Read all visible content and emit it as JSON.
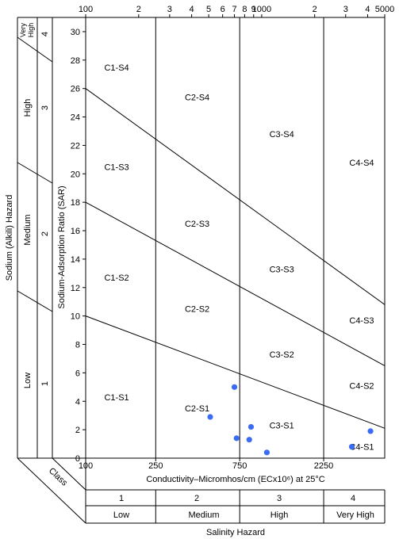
{
  "chart_data": {
    "type": "scatter",
    "title": "",
    "xlabel": "Conductivity–Micromhos/cm (ECx10⁶) at 25°C",
    "ylabel": "Sodium-Adsorption Ratio (SAR)",
    "x_scale": "log",
    "xlim": [
      100,
      5000
    ],
    "ylim": [
      0,
      31
    ],
    "top_ticks": [
      {
        "label": "100",
        "x": 100
      },
      {
        "label": "2",
        "x": 200
      },
      {
        "label": "3",
        "x": 300
      },
      {
        "label": "4",
        "x": 400
      },
      {
        "label": "5",
        "x": 500
      },
      {
        "label": "6",
        "x": 600
      },
      {
        "label": "7",
        "x": 700
      },
      {
        "label": "8",
        "x": 800
      },
      {
        "label": "9",
        "x": 900
      },
      {
        "label": "1000",
        "x": 1000
      },
      {
        "label": "2",
        "x": 2000
      },
      {
        "label": "3",
        "x": 3000
      },
      {
        "label": "4",
        "x": 4000
      },
      {
        "label": "5000",
        "x": 5000
      }
    ],
    "bottom_ticks": [
      {
        "label": "100",
        "x": 100
      },
      {
        "label": "250",
        "x": 250
      },
      {
        "label": "750",
        "x": 750
      },
      {
        "label": "2250",
        "x": 2250
      }
    ],
    "y_ticks": [
      0,
      2,
      4,
      6,
      8,
      10,
      12,
      14,
      16,
      18,
      20,
      22,
      24,
      26,
      28,
      30
    ],
    "class_boundaries_x": [
      250,
      750,
      2250
    ],
    "sar_lines": [
      {
        "x": [
          100,
          5000
        ],
        "y": [
          26,
          10.8
        ]
      },
      {
        "x": [
          100,
          5000
        ],
        "y": [
          18,
          6.5
        ]
      },
      {
        "x": [
          100,
          5000
        ],
        "y": [
          10,
          2.1
        ]
      }
    ],
    "region_labels": [
      {
        "text": "C1-S4",
        "x": 150,
        "y": 27.5
      },
      {
        "text": "C1-S3",
        "x": 150,
        "y": 20.5
      },
      {
        "text": "C1-S2",
        "x": 150,
        "y": 12.7
      },
      {
        "text": "C1-S1",
        "x": 150,
        "y": 4.3
      },
      {
        "text": "C2-S4",
        "x": 430,
        "y": 25.4
      },
      {
        "text": "C2-S3",
        "x": 430,
        "y": 16.5
      },
      {
        "text": "C2-S2",
        "x": 430,
        "y": 10.5
      },
      {
        "text": "C2-S1",
        "x": 430,
        "y": 3.5
      },
      {
        "text": "C3-S4",
        "x": 1300,
        "y": 22.8
      },
      {
        "text": "C3-S3",
        "x": 1300,
        "y": 13.3
      },
      {
        "text": "C3-S2",
        "x": 1300,
        "y": 7.3
      },
      {
        "text": "C3-S1",
        "x": 1300,
        "y": 2.3
      },
      {
        "text": "C4-S4",
        "x": 3700,
        "y": 20.8
      },
      {
        "text": "C4-S3",
        "x": 3700,
        "y": 9.7
      },
      {
        "text": "C4-S2",
        "x": 3700,
        "y": 5.1
      },
      {
        "text": "C4-S1",
        "x": 3700,
        "y": 0.8
      }
    ],
    "points": [
      {
        "x": 700,
        "y": 5.0
      },
      {
        "x": 510,
        "y": 2.9
      },
      {
        "x": 720,
        "y": 1.4
      },
      {
        "x": 850,
        "y": 1.3
      },
      {
        "x": 870,
        "y": 2.2
      },
      {
        "x": 1070,
        "y": 0.4
      },
      {
        "x": 3250,
        "y": 0.8
      },
      {
        "x": 4150,
        "y": 1.9
      }
    ],
    "point_color": "#3a6cf4"
  },
  "sodium_hazard": {
    "axis_label": "Sodium (Alkili) Hazard",
    "classes": [
      {
        "number": "4",
        "name": "Very High",
        "name_lines": [
          "Very",
          "High"
        ]
      },
      {
        "number": "3",
        "name": "High"
      },
      {
        "number": "2",
        "name": "Medium"
      },
      {
        "number": "1",
        "name": "Low"
      }
    ]
  },
  "salinity_hazard": {
    "class_label": "Class",
    "classes": [
      {
        "number": "1",
        "name": "Low"
      },
      {
        "number": "2",
        "name": "Medium"
      },
      {
        "number": "3",
        "name": "High"
      },
      {
        "number": "4",
        "name": "Very High"
      }
    ],
    "axis_label": "Salinity Hazard"
  }
}
